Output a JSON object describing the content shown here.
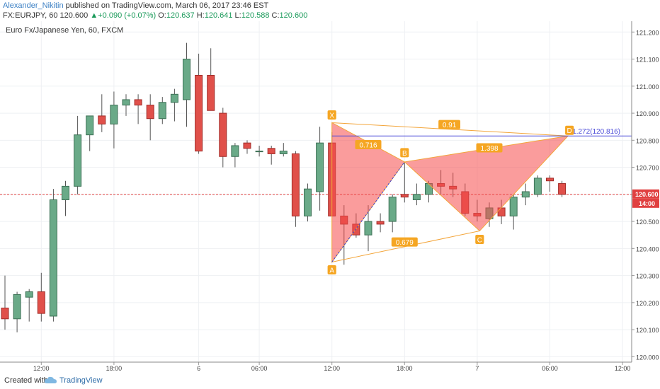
{
  "header": {
    "author": "Alexander_Nikitin",
    "published_text": "published on TradingView.com, March 06, 2017 23:46 EST",
    "symbol": "FX:EURJPY, 60",
    "last": "120.600",
    "change_arrow": "▲",
    "change": "+0.090 (+0.07%)",
    "o_label": "O:",
    "o_value": "120.637",
    "h_label": "H:",
    "h_value": "120.641",
    "l_label": "L:",
    "l_value": "120.588",
    "c_label": "C:",
    "c_value": "120.600"
  },
  "chart_data": {
    "type": "candlestick",
    "title": "Euro Fx/Japanese Yen, 60, FXCM",
    "ylim": [
      119.98,
      121.24
    ],
    "y_ticks": [
      "120.000",
      "120.100",
      "120.200",
      "120.300",
      "120.400",
      "120.500",
      "120.600",
      "120.700",
      "120.800",
      "120.900",
      "121.000",
      "121.100",
      "121.200"
    ],
    "x_ticks": [
      {
        "label": "12:00",
        "i": 3
      },
      {
        "label": "18:00",
        "i": 9
      },
      {
        "label": "6",
        "i": 16
      },
      {
        "label": "06:00",
        "i": 21
      },
      {
        "label": "12:00",
        "i": 27
      },
      {
        "label": "18:00",
        "i": 33
      },
      {
        "label": "7",
        "i": 39
      },
      {
        "label": "06:00",
        "i": 45
      },
      {
        "label": "12:00",
        "i": 51
      }
    ],
    "current_price_label": "120.600",
    "current_price": 120.6,
    "countdown_label": "14:00",
    "candles": [
      {
        "o": 120.18,
        "h": 120.3,
        "l": 120.1,
        "c": 120.14
      },
      {
        "o": 120.14,
        "h": 120.24,
        "l": 120.09,
        "c": 120.23
      },
      {
        "o": 120.22,
        "h": 120.25,
        "l": 120.13,
        "c": 120.24
      },
      {
        "o": 120.24,
        "h": 120.31,
        "l": 120.13,
        "c": 120.16
      },
      {
        "o": 120.15,
        "h": 120.62,
        "l": 120.13,
        "c": 120.58
      },
      {
        "o": 120.58,
        "h": 120.65,
        "l": 120.52,
        "c": 120.63
      },
      {
        "o": 120.63,
        "h": 120.89,
        "l": 120.6,
        "c": 120.82
      },
      {
        "o": 120.82,
        "h": 120.89,
        "l": 120.76,
        "c": 120.89
      },
      {
        "o": 120.89,
        "h": 120.97,
        "l": 120.83,
        "c": 120.86
      },
      {
        "o": 120.86,
        "h": 120.98,
        "l": 120.77,
        "c": 120.93
      },
      {
        "o": 120.93,
        "h": 120.97,
        "l": 120.89,
        "c": 120.95
      },
      {
        "o": 120.95,
        "h": 120.97,
        "l": 120.86,
        "c": 120.93
      },
      {
        "o": 120.93,
        "h": 120.97,
        "l": 120.8,
        "c": 120.88
      },
      {
        "o": 120.88,
        "h": 120.96,
        "l": 120.86,
        "c": 120.94
      },
      {
        "o": 120.94,
        "h": 120.99,
        "l": 120.87,
        "c": 120.97
      },
      {
        "o": 120.95,
        "h": 121.16,
        "l": 120.85,
        "c": 121.1
      },
      {
        "o": 121.04,
        "h": 121.12,
        "l": 120.75,
        "c": 120.76
      },
      {
        "o": 121.04,
        "h": 121.14,
        "l": 120.91,
        "c": 120.91
      },
      {
        "o": 120.9,
        "h": 120.92,
        "l": 120.7,
        "c": 120.74
      },
      {
        "o": 120.74,
        "h": 120.79,
        "l": 120.7,
        "c": 120.78
      },
      {
        "o": 120.79,
        "h": 120.8,
        "l": 120.75,
        "c": 120.77
      },
      {
        "o": 120.76,
        "h": 120.78,
        "l": 120.74,
        "c": 120.76
      },
      {
        "o": 120.77,
        "h": 120.78,
        "l": 120.71,
        "c": 120.75
      },
      {
        "o": 120.75,
        "h": 120.79,
        "l": 120.74,
        "c": 120.76
      },
      {
        "o": 120.75,
        "h": 120.76,
        "l": 120.48,
        "c": 120.52
      },
      {
        "o": 120.52,
        "h": 120.64,
        "l": 120.5,
        "c": 120.62
      },
      {
        "o": 120.61,
        "h": 120.85,
        "l": 120.54,
        "c": 120.79
      },
      {
        "o": 120.79,
        "h": 120.83,
        "l": 120.52,
        "c": 120.52
      },
      {
        "o": 120.52,
        "h": 120.56,
        "l": 120.34,
        "c": 120.49
      },
      {
        "o": 120.49,
        "h": 120.53,
        "l": 120.44,
        "c": 120.45
      },
      {
        "o": 120.45,
        "h": 120.56,
        "l": 120.39,
        "c": 120.5
      },
      {
        "o": 120.5,
        "h": 120.53,
        "l": 120.46,
        "c": 120.49
      },
      {
        "o": 120.5,
        "h": 120.6,
        "l": 120.46,
        "c": 120.59
      },
      {
        "o": 120.6,
        "h": 120.72,
        "l": 120.57,
        "c": 120.59
      },
      {
        "o": 120.58,
        "h": 120.64,
        "l": 120.56,
        "c": 120.6
      },
      {
        "o": 120.6,
        "h": 120.65,
        "l": 120.57,
        "c": 120.64
      },
      {
        "o": 120.64,
        "h": 120.69,
        "l": 120.6,
        "c": 120.63
      },
      {
        "o": 120.63,
        "h": 120.68,
        "l": 120.59,
        "c": 120.62
      },
      {
        "o": 120.61,
        "h": 120.64,
        "l": 120.52,
        "c": 120.53
      },
      {
        "o": 120.53,
        "h": 120.58,
        "l": 120.5,
        "c": 120.52
      },
      {
        "o": 120.51,
        "h": 120.57,
        "l": 120.48,
        "c": 120.55
      },
      {
        "o": 120.55,
        "h": 120.58,
        "l": 120.49,
        "c": 120.52
      },
      {
        "o": 120.52,
        "h": 120.6,
        "l": 120.47,
        "c": 120.59
      },
      {
        "o": 120.59,
        "h": 120.64,
        "l": 120.56,
        "c": 120.61
      },
      {
        "o": 120.6,
        "h": 120.67,
        "l": 120.59,
        "c": 120.66
      },
      {
        "o": 120.66,
        "h": 120.67,
        "l": 120.61,
        "c": 120.65
      },
      {
        "o": 120.64,
        "h": 120.65,
        "l": 120.59,
        "c": 120.6
      }
    ],
    "pattern": {
      "points": [
        {
          "label": "X",
          "i": 27.0,
          "y": 120.865
        },
        {
          "label": "A",
          "i": 27.0,
          "y": 120.35
        },
        {
          "label": "B",
          "i": 33.0,
          "y": 120.72
        },
        {
          "label": "C",
          "i": 39.2,
          "y": 120.465
        },
        {
          "label": "D",
          "i": 46.5,
          "y": 120.816
        }
      ],
      "ratios": [
        {
          "text": "0.716",
          "i": 30.0,
          "y": 120.784
        },
        {
          "text": "0.679",
          "i": 33.0,
          "y": 120.424
        },
        {
          "text": "1.398",
          "i": 40.0,
          "y": 120.772
        },
        {
          "text": "0.91",
          "i": 36.7,
          "y": 120.858
        }
      ],
      "target_label": "1.272(120.816)",
      "target_value": 120.816
    }
  }
}
